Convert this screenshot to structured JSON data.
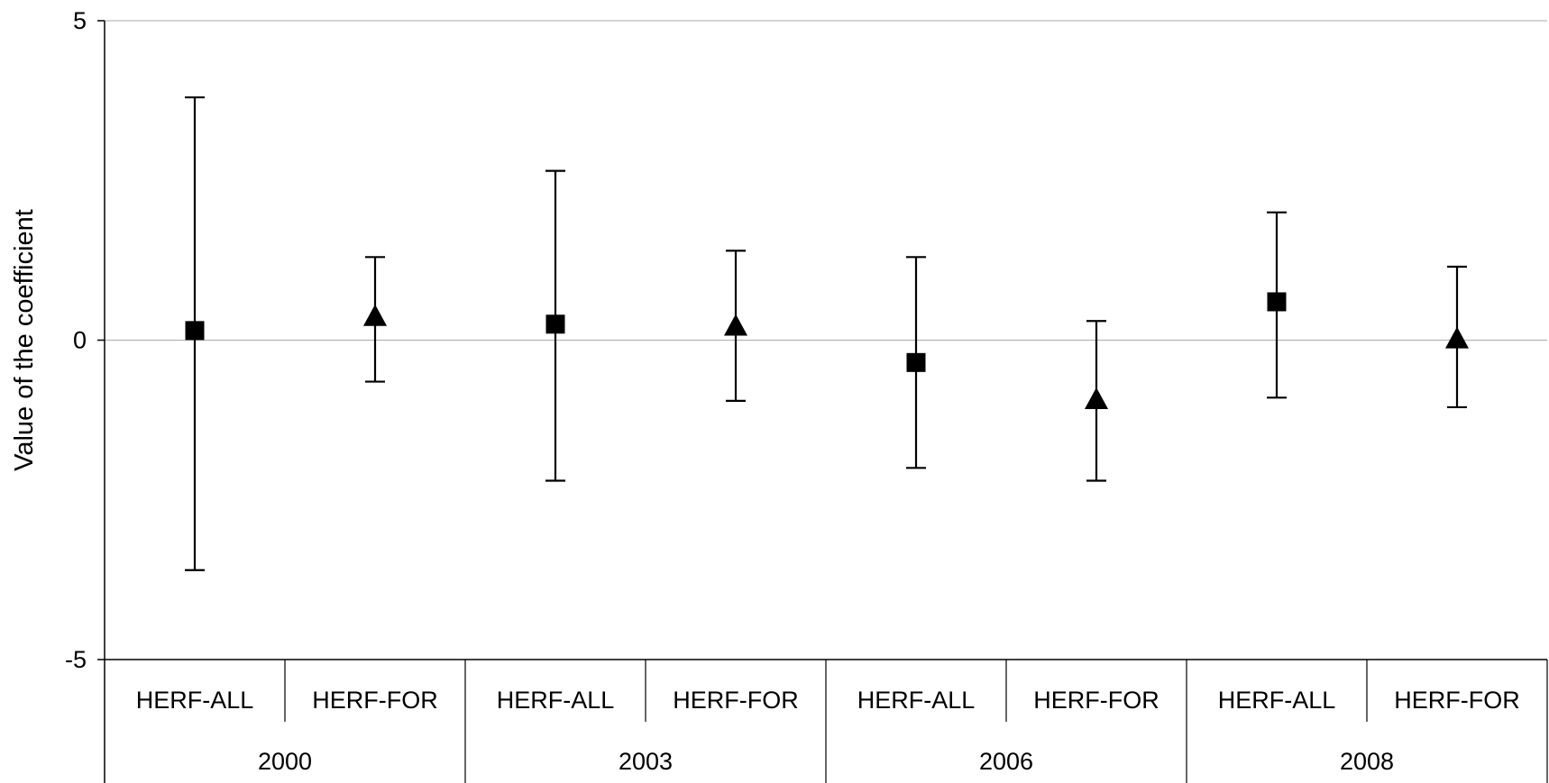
{
  "chart_data": {
    "type": "scatter",
    "title": "",
    "xlabel": "",
    "ylabel": "Value of the coefficient",
    "ylim": [
      -5,
      5
    ],
    "yticks": [
      5,
      0,
      -5
    ],
    "grid": "horizontal-gridlines",
    "legend": "none",
    "groups": [
      "2000",
      "2003",
      "2006",
      "2008"
    ],
    "categories": [
      "HERF-ALL",
      "HERF-FOR"
    ],
    "points": [
      {
        "group": "2000",
        "category": "HERF-ALL",
        "marker": "square",
        "value": 0.15,
        "low": -3.6,
        "high": 3.8
      },
      {
        "group": "2000",
        "category": "HERF-FOR",
        "marker": "triangle",
        "value": 0.35,
        "low": -0.65,
        "high": 1.3
      },
      {
        "group": "2003",
        "category": "HERF-ALL",
        "marker": "square",
        "value": 0.25,
        "low": -2.2,
        "high": 2.65
      },
      {
        "group": "2003",
        "category": "HERF-FOR",
        "marker": "triangle",
        "value": 0.2,
        "low": -0.95,
        "high": 1.4
      },
      {
        "group": "2006",
        "category": "HERF-ALL",
        "marker": "square",
        "value": -0.35,
        "low": -2.0,
        "high": 1.3
      },
      {
        "group": "2006",
        "category": "HERF-FOR",
        "marker": "triangle",
        "value": -0.95,
        "low": -2.2,
        "high": 0.3
      },
      {
        "group": "2008",
        "category": "HERF-ALL",
        "marker": "square",
        "value": 0.6,
        "low": -0.9,
        "high": 2.0
      },
      {
        "group": "2008",
        "category": "HERF-FOR",
        "marker": "triangle",
        "value": 0.0,
        "low": -1.05,
        "high": 1.15
      }
    ],
    "colors": {
      "marker": "#000000",
      "axis": "#000000",
      "gridline": "#aaaaaa"
    }
  }
}
